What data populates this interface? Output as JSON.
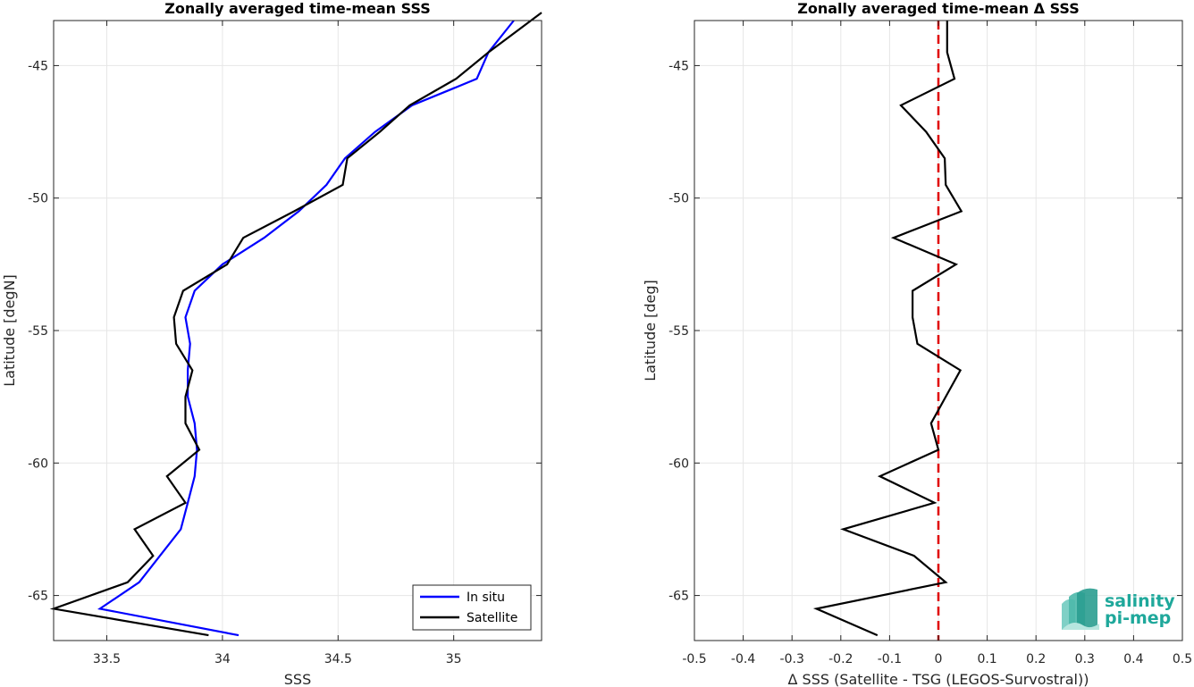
{
  "chart_data": [
    {
      "type": "line",
      "title": "Zonally averaged time-mean SSS",
      "xlabel": "SSS",
      "ylabel": "Latitude [degN]",
      "xlim": [
        33.27,
        35.38
      ],
      "ylim": [
        -66.7,
        -43.3
      ],
      "xticks": [
        33.5,
        34,
        34.5,
        35
      ],
      "xtick_labels": [
        "33.5",
        "34",
        "34.5",
        "35"
      ],
      "yticks": [
        -45,
        -50,
        -55,
        -60,
        -65
      ],
      "ytick_labels": [
        "-45",
        "-50",
        "-55",
        "-60",
        "-65"
      ],
      "grid": true,
      "legend_position": "bottom-right",
      "series": [
        {
          "name": "In situ",
          "color": "#0000ff",
          "x": [
            34.07,
            33.47,
            33.64,
            33.73,
            33.82,
            33.85,
            33.88,
            33.89,
            33.88,
            33.85,
            33.85,
            33.86,
            33.84,
            33.88,
            34.0,
            34.18,
            34.33,
            34.45,
            34.53,
            34.66,
            34.82,
            35.1,
            35.15,
            35.26
          ],
          "y": [
            -66.5,
            -65.5,
            -64.5,
            -63.5,
            -62.5,
            -61.5,
            -60.5,
            -59.5,
            -58.5,
            -57.5,
            -56.5,
            -55.5,
            -54.5,
            -53.5,
            -52.5,
            -51.5,
            -50.5,
            -49.5,
            -48.5,
            -47.5,
            -46.5,
            -45.5,
            -44.5,
            -43.3
          ]
        },
        {
          "name": "Satellite",
          "color": "#000000",
          "x": [
            33.94,
            33.27,
            33.59,
            33.7,
            33.62,
            33.84,
            33.76,
            33.9,
            33.84,
            33.84,
            33.87,
            33.8,
            33.79,
            33.83,
            34.02,
            34.09,
            34.31,
            34.52,
            34.54,
            34.68,
            34.81,
            35.01,
            35.15,
            35.38
          ],
          "y": [
            -66.5,
            -65.5,
            -64.5,
            -63.5,
            -62.5,
            -61.5,
            -60.5,
            -59.5,
            -58.5,
            -57.5,
            -56.5,
            -55.5,
            -54.5,
            -53.5,
            -52.5,
            -51.5,
            -50.5,
            -49.5,
            -48.5,
            -47.5,
            -46.5,
            -45.5,
            -44.5,
            -43.0
          ]
        }
      ]
    },
    {
      "type": "line",
      "title": "Zonally averaged time-mean Δ SSS",
      "xlabel": "Δ SSS (Satellite - TSG (LEGOS-Survostral))",
      "ylabel": "Latitude [deg]",
      "xlim": [
        -0.5,
        0.5
      ],
      "ylim": [
        -66.7,
        -43.3
      ],
      "xticks": [
        -0.5,
        -0.4,
        -0.3,
        -0.2,
        -0.1,
        0,
        0.1,
        0.2,
        0.3,
        0.4,
        0.5
      ],
      "xtick_labels": [
        "-0.5",
        "-0.4",
        "-0.3",
        "-0.2",
        "-0.1",
        "0",
        "0.1",
        "0.2",
        "0.3",
        "0.4",
        "0.5"
      ],
      "yticks": [
        -45,
        -50,
        -55,
        -60,
        -65
      ],
      "ytick_labels": [
        "-45",
        "-50",
        "-55",
        "-60",
        "-65"
      ],
      "grid": true,
      "reference_line": {
        "x": 0,
        "color": "#e00000",
        "style": "dashed"
      },
      "series": [
        {
          "color": "#000000",
          "x": [
            -0.125,
            -0.25,
            0.015,
            -0.05,
            -0.195,
            -0.008,
            -0.12,
            0.0,
            -0.015,
            0.015,
            0.045,
            -0.043,
            -0.053,
            -0.053,
            0.036,
            -0.092,
            0.047,
            0.015,
            0.013,
            -0.025,
            -0.077,
            0.033,
            0.018
          ],
          "y": [
            -66.5,
            -65.5,
            -64.5,
            -63.5,
            -62.5,
            -61.5,
            -60.5,
            -59.5,
            -58.5,
            -57.5,
            -56.5,
            -55.5,
            -54.5,
            -53.5,
            -52.5,
            -51.5,
            -50.5,
            -49.5,
            -48.5,
            -47.5,
            -46.5,
            -45.5,
            -44.5
          ]
        }
      ],
      "series_extra_point": {
        "x": 0.018,
        "y": -43.3
      }
    }
  ],
  "logo": {
    "line1": "salinity",
    "line2": "pi-mep",
    "color": "#1fa89b"
  }
}
